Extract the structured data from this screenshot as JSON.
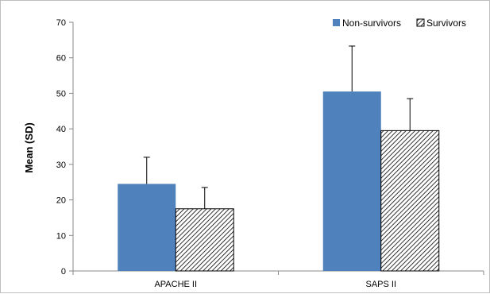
{
  "chart_data": {
    "type": "bar",
    "title": "",
    "xlabel": "",
    "ylabel": "Mean (SD)",
    "ylim": [
      0,
      70
    ],
    "yticks": [
      0,
      10,
      20,
      30,
      40,
      50,
      60,
      70
    ],
    "categories": [
      "APACHE II",
      "SAPS II"
    ],
    "series": [
      {
        "name": "Non-survivors",
        "values": [
          24.5,
          50.5
        ],
        "errors": [
          7.5,
          12.8
        ],
        "color": "#4f81bd",
        "fill": "solid"
      },
      {
        "name": "Survivors",
        "values": [
          17.5,
          39.5
        ],
        "errors": [
          6.0,
          9.0
        ],
        "color": "#000000",
        "fill": "diagonal-hatch"
      }
    ],
    "grid": false,
    "legend_position": "top-right"
  }
}
